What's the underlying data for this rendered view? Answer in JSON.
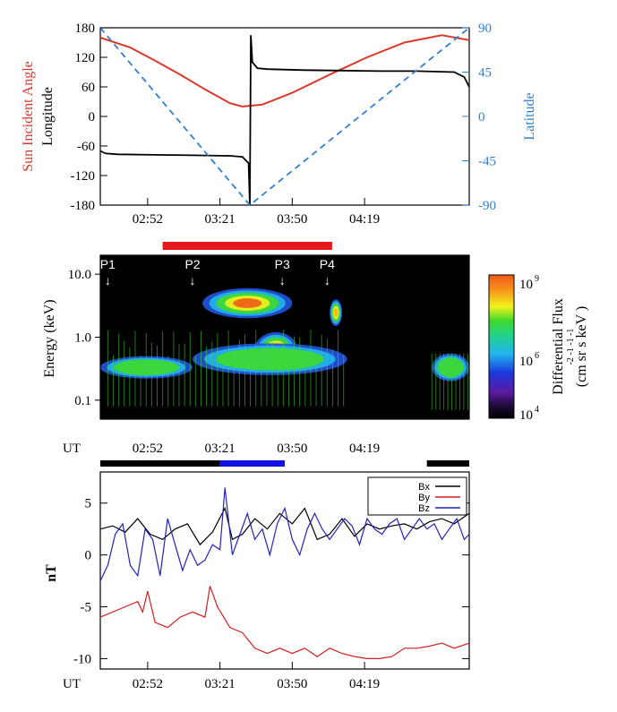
{
  "colors": {
    "sun_angle": "#d9382a",
    "longitude": "#000000",
    "latitude": "#2f80d0",
    "interval_red": "#e41a1c",
    "interval_blue": "#1010e0",
    "interval_black": "#000000",
    "bx": "#000000",
    "by": "#d02020",
    "bz": "#2222bb"
  },
  "chart_data": [
    {
      "type": "line",
      "ylabel_left_1": "Sun Incident Angle",
      "ylabel_left_2": "Longitude",
      "ylabel_right": "Latitude",
      "x_tick_labels": [
        "02:52",
        "03:21",
        "03:50",
        "04:19"
      ],
      "x_ticks_min": [
        172,
        201,
        230,
        259
      ],
      "xlim_min": [
        153,
        301
      ],
      "ylim_left": [
        -180,
        180
      ],
      "y_ticks_left": [
        180,
        120,
        60,
        0,
        -60,
        -120,
        -180
      ],
      "ylim_right": [
        -90,
        90
      ],
      "y_ticks_right": [
        90,
        45,
        0,
        -45,
        -90
      ],
      "series": [
        {
          "key": "sun_angle",
          "axis": "left",
          "x": [
            153,
            165,
            175,
            185,
            195,
            205,
            210,
            218,
            230,
            245,
            260,
            275,
            290,
            301
          ],
          "y": [
            160,
            140,
            113,
            85,
            55,
            27,
            20,
            24,
            48,
            85,
            120,
            150,
            165,
            155
          ]
        },
        {
          "key": "longitude",
          "axis": "left",
          "x": [
            153,
            155,
            160,
            175,
            190,
            205,
            210,
            212.5,
            213,
            213.4,
            214,
            216,
            220,
            235,
            250,
            265,
            280,
            295,
            299,
            301
          ],
          "y": [
            -70,
            -75,
            -77,
            -78,
            -79,
            -80,
            -82,
            -95,
            -180,
            165,
            110,
            98,
            96,
            94,
            93,
            92,
            92,
            90,
            80,
            60
          ]
        },
        {
          "key": "latitude",
          "axis": "right",
          "dashed": true,
          "x": [
            153,
            213,
            301
          ],
          "y": [
            90,
            -90,
            90
          ]
        }
      ]
    },
    {
      "type": "heatmap",
      "ylabel": "Energy (keV)",
      "y_scale": "log",
      "y_ticks": [
        "10.0",
        "1.0",
        "0.1"
      ],
      "xlim_min": [
        153,
        301
      ],
      "colorbar_label_1": "Differential Flux",
      "colorbar_label_2": "(cm sr s keV )",
      "colorbar_exponents": "-2   -1  -1        -1",
      "colorbar_ticks": [
        {
          "base": "10",
          "exp": "9"
        },
        {
          "base": "10",
          "exp": "6"
        },
        {
          "base": "10",
          "exp": "4"
        }
      ],
      "markers": [
        {
          "label": "P1",
          "x_min": 156
        },
        {
          "label": "P2",
          "x_min": 190
        },
        {
          "label": "P3",
          "x_min": 226
        },
        {
          "label": "P4",
          "x_min": 244
        }
      ],
      "blobs": [
        {
          "x_min": 194,
          "x_max": 230,
          "e_low": 2.0,
          "e_high": 6.0,
          "level": 0.92
        },
        {
          "x_min": 215,
          "x_max": 232,
          "e_low": 0.35,
          "e_high": 1.2,
          "level": 0.95
        },
        {
          "x_min": 245,
          "x_max": 250,
          "e_low": 1.5,
          "e_high": 4.0,
          "level": 0.85
        },
        {
          "x_min": 153,
          "x_max": 190,
          "e_low": 0.22,
          "e_high": 0.5,
          "level": 0.55
        },
        {
          "x_min": 190,
          "x_max": 252,
          "e_low": 0.25,
          "e_high": 0.8,
          "level": 0.6
        },
        {
          "x_min": 286,
          "x_max": 301,
          "e_low": 0.2,
          "e_high": 0.55,
          "level": 0.55
        }
      ]
    },
    {
      "type": "line",
      "ylabel": "nT",
      "xlabel": "UT",
      "x_tick_labels": [
        "02:52",
        "03:21",
        "03:50",
        "04:19"
      ],
      "x_ticks_min": [
        172,
        201,
        230,
        259
      ],
      "xlim_min": [
        153,
        301
      ],
      "ylim": [
        -11,
        8
      ],
      "y_ticks": [
        5,
        0,
        -5,
        -10
      ],
      "legend": [
        "Bx",
        "By",
        "Bz"
      ],
      "legend_position": "top-right",
      "series": [
        {
          "name": "Bx",
          "key": "bx",
          "x": [
            153,
            158,
            163,
            168,
            173,
            178,
            183,
            188,
            193,
            198,
            203,
            206,
            210,
            215,
            220,
            225,
            230,
            235,
            240,
            245,
            250,
            255,
            260,
            265,
            270,
            275,
            280,
            285,
            290,
            295,
            301
          ],
          "y": [
            2.5,
            2.8,
            2.2,
            3.5,
            2.0,
            1.5,
            2.5,
            3.0,
            1.0,
            2.2,
            4.5,
            1.5,
            2.0,
            3.5,
            2.5,
            4.0,
            3.0,
            4.5,
            1.5,
            2.0,
            3.5,
            1.8,
            3.0,
            2.5,
            2.8,
            3.0,
            2.5,
            3.2,
            3.5,
            3.0,
            4.0
          ]
        },
        {
          "name": "By",
          "key": "by",
          "x": [
            153,
            158,
            163,
            168,
            170,
            172,
            175,
            180,
            185,
            190,
            195,
            197,
            200,
            205,
            210,
            215,
            220,
            225,
            230,
            235,
            240,
            245,
            250,
            255,
            260,
            265,
            270,
            275,
            280,
            285,
            290,
            295,
            301
          ],
          "y": [
            -6,
            -5.5,
            -5.0,
            -4.5,
            -5.5,
            -3.5,
            -6.5,
            -7.0,
            -6.0,
            -5.5,
            -6.0,
            -3.0,
            -5.0,
            -7.0,
            -7.5,
            -9.0,
            -9.5,
            -9.0,
            -9.5,
            -9.0,
            -9.8,
            -9.0,
            -9.5,
            -9.8,
            -10.0,
            -10.0,
            -9.8,
            -9.0,
            -9.0,
            -8.8,
            -8.5,
            -9.0,
            -8.5
          ]
        },
        {
          "name": "Bz",
          "key": "bz",
          "x": [
            153,
            156,
            159,
            162,
            165,
            168,
            171,
            174,
            177,
            180,
            183,
            186,
            189,
            192,
            195,
            198,
            201,
            203,
            206,
            209,
            212,
            215,
            218,
            221,
            224,
            227,
            230,
            233,
            236,
            239,
            242,
            245,
            248,
            251,
            254,
            257,
            260,
            263,
            266,
            269,
            272,
            275,
            278,
            281,
            284,
            287,
            290,
            293,
            296,
            299,
            301
          ],
          "y": [
            -2.5,
            -1.0,
            2.0,
            3.0,
            -1.0,
            -2.0,
            2.5,
            1.5,
            -2.0,
            3.5,
            1.0,
            -1.5,
            0.5,
            -1.0,
            -0.5,
            1.0,
            0.5,
            6.5,
            0.0,
            2.0,
            4.0,
            1.5,
            2.5,
            0.0,
            3.0,
            4.5,
            1.5,
            0.0,
            2.5,
            4.0,
            2.5,
            1.5,
            2.5,
            3.5,
            2.8,
            1.0,
            3.5,
            2.5,
            2.0,
            3.0,
            3.5,
            1.5,
            2.5,
            3.5,
            2.5,
            3.0,
            1.5,
            2.5,
            3.5,
            1.5,
            2.0
          ]
        }
      ]
    }
  ],
  "intervals": {
    "red": [
      [
        178,
        246
      ]
    ],
    "black": [
      [
        153,
        201
      ],
      [
        284,
        301
      ]
    ],
    "blue": [
      [
        201,
        227
      ]
    ]
  }
}
